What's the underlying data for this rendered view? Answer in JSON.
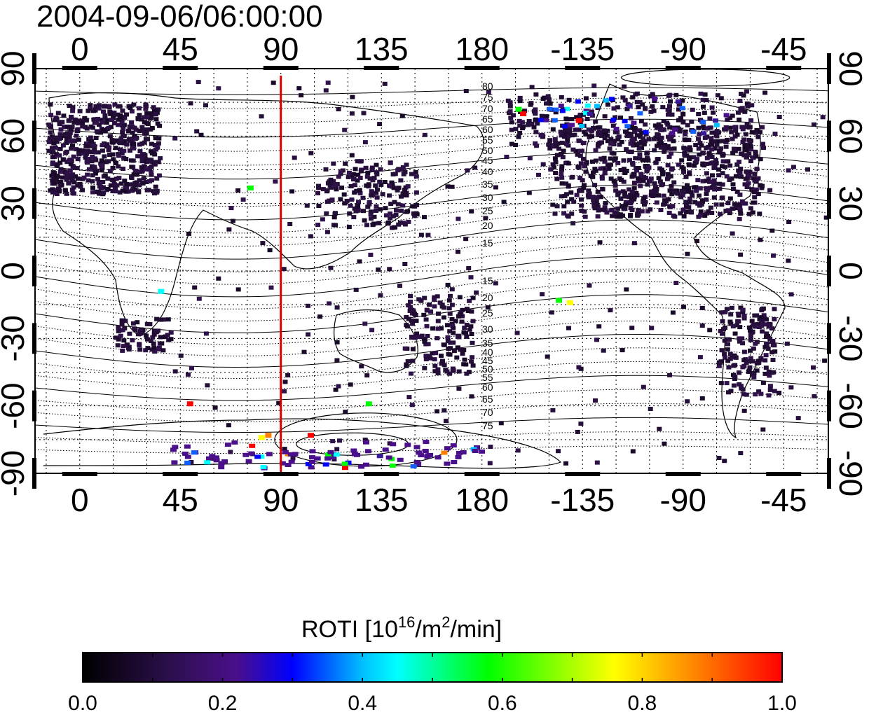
{
  "title": "2004-09-06/06:00:00",
  "map": {
    "lon_ticks": [
      0,
      45,
      90,
      135,
      180,
      225,
      270,
      315
    ],
    "lon_tick_labels": [
      "0",
      "45",
      "90",
      "135",
      "180",
      "-135",
      "-90",
      "-45"
    ],
    "lat_ticks": [
      90,
      60,
      30,
      0,
      -30,
      -60,
      -90
    ],
    "lat_tick_labels": [
      "90",
      "60",
      "30",
      "0",
      "-30",
      "-60",
      "-90"
    ],
    "lon_range": [
      -20,
      335
    ],
    "lat_range": [
      -90,
      90
    ],
    "grid": true,
    "marker_line": {
      "longitude": 90,
      "color": "#d40000"
    },
    "contour_labels": [
      "80",
      "75",
      "70",
      "65",
      "60",
      "55",
      "50",
      "45",
      "40",
      "35",
      "30",
      "25",
      "20",
      "15",
      "15",
      "20",
      "25",
      "30",
      "35",
      "40",
      "45",
      "50",
      "55",
      "60",
      "65",
      "70",
      "75"
    ]
  },
  "colorbar": {
    "title_prefix": "ROTI  [10",
    "title_sup1": "16",
    "title_mid": "/m",
    "title_sup2": "2",
    "title_suffix": "/min]",
    "tick_values": [
      0.0,
      0.2,
      0.4,
      0.6,
      0.8,
      1.0
    ],
    "tick_labels": [
      "0.0",
      "0.2",
      "0.4",
      "0.6",
      "0.8",
      "1.0"
    ],
    "range": [
      0.0,
      1.0
    ],
    "colors": [
      "#000000",
      "#2a0f4a",
      "#4a0f8a",
      "#0000ff",
      "#00bfff",
      "#00ffff",
      "#00ff00",
      "#ffff00",
      "#ff8000",
      "#ff0000"
    ]
  }
}
